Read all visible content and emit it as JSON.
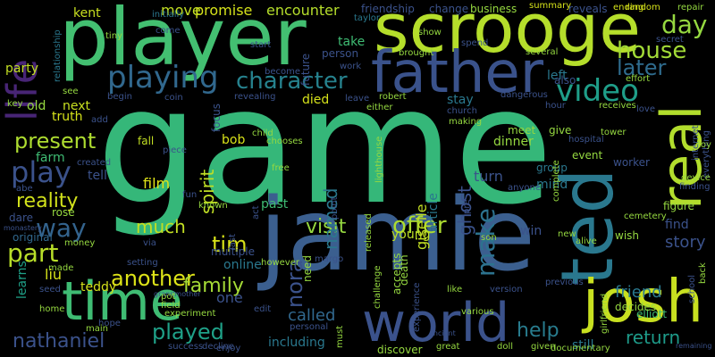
{
  "background": "#000000",
  "words": {
    "game": "game",
    "jamie": "jamie",
    "player": "player",
    "scrooge": "scrooge",
    "father": "father",
    "ted": "ted",
    "world": "world",
    "time": "time",
    "josh": "josh",
    "real": "real",
    "life": "life",
    "video": "video",
    "playing": "playing",
    "character": "character",
    "present": "present",
    "play": "play",
    "reality": "reality",
    "way": "way",
    "part": "part",
    "another": "another",
    "family": "family",
    "much": "much",
    "tim": "tim",
    "visit": "visit",
    "offer": "offer",
    "make": "make",
    "ghost": "ghost",
    "house": "house",
    "day": "day",
    "later": "later",
    "nora": "nora",
    "named": "named",
    "nathaniel": "nathaniel",
    "played": "played",
    "return": "return",
    "called": "called",
    "help": "help",
    "friend": "friend",
    "story": "story",
    "encounter": "encounter",
    "promise": "promise",
    "move": "move",
    "kent": "kent",
    "take": "take",
    "died": "died",
    "stay": "stay",
    "next": "next",
    "spirit": "spirit",
    "film": "film",
    "tell": "tell",
    "farm": "farm",
    "liu": "liu",
    "learns": "learns",
    "online": "online",
    "one": "one",
    "past": "past",
    "young": "young",
    "giselle": "giselle",
    "article": "article",
    "turn": "turn",
    "mind": "mind",
    "find": "find",
    "figure": "figure",
    "win": "win",
    "wish": "wish",
    "elliott": "elliott",
    "decides": "decides",
    "still": "still",
    "including": "including",
    "teddy": "teddy",
    "multiple": "multiple",
    "bob": "bob",
    "fall": "fall",
    "truth": "truth",
    "old": "old",
    "party": "party",
    "dare": "dare",
    "rose": "rose",
    "original": "original",
    "dinner": "dinner",
    "meet": "meet",
    "give": "give",
    "left": "left",
    "also": "also",
    "event": "event",
    "group": "group",
    "worker": "worker",
    "person": "person",
    "future": "future",
    "business": "business",
    "summary": "summary",
    "reveals": "reveals",
    "ending": "ending",
    "random": "random",
    "repair": "repair",
    "friendship": "friendship",
    "change": "change",
    "initially": "initially",
    "taylor": "taylor",
    "relationship": "relationship",
    "tiny": "tiny",
    "come": "come",
    "start": "start",
    "show": "show",
    "spend": "spend",
    "brought": "brought",
    "several": "several",
    "effort": "effort",
    "secret": "secret",
    "key": "key",
    "see": "see",
    "begin": "begin",
    "coin": "coin",
    "revealing": "revealing",
    "leave": "leave",
    "robert": "robert",
    "dangerous": "dangerous",
    "hour": "hour",
    "receives": "receives",
    "love": "love",
    "church": "church",
    "making": "making",
    "become": "become",
    "work": "work",
    "either": "either",
    "add": "add",
    "focus": "focus",
    "child": "child",
    "chooses": "chooses",
    "lighthouse": "lighthouse",
    "hospital": "hospital",
    "tower": "tower",
    "internet": "internet",
    "everything": "everything",
    "toy": "toy",
    "created": "created",
    "piece": "piece",
    "free": "free",
    "act": "act",
    "point": "point",
    "released": "released",
    "pre": "pre",
    "anyone": "anyone",
    "complete": "complete",
    "device": "device",
    "finding": "finding",
    "fun": "fun",
    "known": "known",
    "via": "via",
    "setting": "setting",
    "money": "money",
    "last": "last",
    "however": "however",
    "cemetery": "cemetery",
    "alive": "alive",
    "new": "new",
    "son": "son",
    "margo": "margo",
    "need": "need",
    "accepts": "accepts",
    "death": "death",
    "challenge": "challenge",
    "made": "made",
    "grandmother": "grandmother",
    "seed": "seed",
    "pot": "pot",
    "field": "field",
    "experiment": "experiment",
    "edit": "edit",
    "like": "like",
    "experience": "experience",
    "version": "version",
    "previous": "previous",
    "school": "school",
    "back": "back",
    "girlfriend": "girlfriend",
    "home": "home",
    "main": "main",
    "success": "success",
    "decline": "decline",
    "enjoy": "enjoy",
    "personal": "personal",
    "must": "must",
    "ancient": "ancient",
    "great": "great",
    "discover": "discover",
    "doll": "doll",
    "given": "given",
    "documentary": "documentary",
    "various": "various",
    "remaining": "remaining",
    "abe": "abe",
    "monastery": "monastery",
    "hope": "hope"
  }
}
